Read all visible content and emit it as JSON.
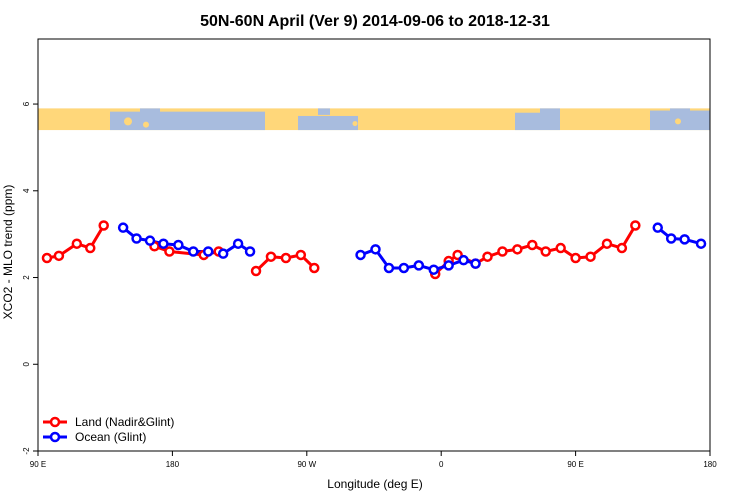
{
  "chart_data": {
    "type": "line",
    "title": "50N-60N April (Ver 9)   2014-09-06 to 2018-12-31",
    "xlabel": "Longitude (deg E)",
    "ylabel": "XCO2 - MLO trend (ppm)",
    "xlim": [
      90,
      540
    ],
    "ylim": [
      -2,
      7.5
    ],
    "x_ticks": [
      {
        "value": 90,
        "label": "90 E"
      },
      {
        "value": 180,
        "label": "180"
      },
      {
        "value": 270,
        "label": "90 W"
      },
      {
        "value": 360,
        "label": "0"
      },
      {
        "value": 450,
        "label": "90 E"
      },
      {
        "value": 540,
        "label": "180"
      }
    ],
    "y_ticks": [
      {
        "value": -2,
        "label": "-2"
      },
      {
        "value": 0,
        "label": "0"
      },
      {
        "value": 2,
        "label": "2"
      },
      {
        "value": 4,
        "label": "4"
      },
      {
        "value": 6,
        "label": "6"
      }
    ],
    "map_strip": {
      "y_range": [
        5.4,
        5.9
      ],
      "ocean_color": "#a8bcde",
      "land_color": "#ffd77a"
    },
    "legend": {
      "position": "bottom-left"
    },
    "series": [
      {
        "name": "Land (Nadir&Glint)",
        "color": "#ff0000",
        "segments": [
          [
            [
              96,
              2.45
            ],
            [
              104,
              2.5
            ],
            [
              116,
              2.78
            ],
            [
              125,
              2.68
            ],
            [
              134,
              3.2
            ]
          ],
          [
            [
              168,
              2.72
            ],
            [
              178,
              2.6
            ],
            [
              201,
              2.52
            ],
            [
              211,
              2.6
            ]
          ],
          [
            [
              236,
              2.15
            ],
            [
              246,
              2.48
            ],
            [
              256,
              2.45
            ],
            [
              266,
              2.52
            ],
            [
              275,
              2.22
            ]
          ],
          [
            [
              356,
              2.08
            ],
            [
              365,
              2.38
            ],
            [
              371,
              2.52
            ],
            [
              383,
              2.32
            ],
            [
              391,
              2.48
            ],
            [
              401,
              2.6
            ],
            [
              411,
              2.65
            ],
            [
              421,
              2.75
            ],
            [
              430,
              2.6
            ],
            [
              440,
              2.68
            ],
            [
              450,
              2.45
            ],
            [
              460,
              2.48
            ],
            [
              471,
              2.78
            ],
            [
              481,
              2.68
            ],
            [
              490,
              3.2
            ]
          ]
        ]
      },
      {
        "name": "Ocean (Glint)",
        "color": "#0000ff",
        "segments": [
          [
            [
              147,
              3.15
            ],
            [
              156,
              2.9
            ],
            [
              165,
              2.85
            ],
            [
              174,
              2.78
            ],
            [
              184,
              2.75
            ],
            [
              194,
              2.6
            ],
            [
              204,
              2.6
            ],
            [
              214,
              2.55
            ],
            [
              224,
              2.78
            ],
            [
              232,
              2.6
            ]
          ],
          [
            [
              306,
              2.52
            ],
            [
              316,
              2.65
            ],
            [
              325,
              2.22
            ],
            [
              335,
              2.22
            ],
            [
              345,
              2.28
            ],
            [
              355,
              2.18
            ],
            [
              365,
              2.28
            ],
            [
              375,
              2.4
            ],
            [
              383,
              2.32
            ]
          ],
          [
            [
              505,
              3.15
            ],
            [
              514,
              2.9
            ],
            [
              523,
              2.88
            ],
            [
              534,
              2.78
            ]
          ]
        ]
      }
    ]
  }
}
